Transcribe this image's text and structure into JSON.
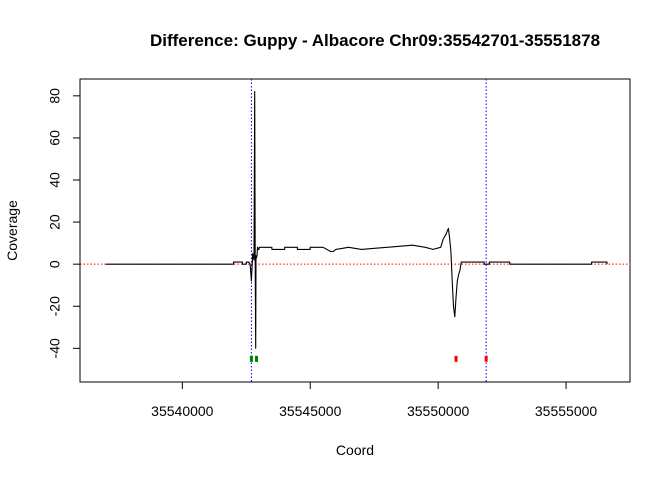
{
  "chart_data": {
    "type": "line",
    "title": "Difference: Guppy - Albacore  Chr09:35542701-35551878",
    "xlabel": "Coord",
    "ylabel": "Coverage",
    "xlim": [
      35536000,
      35557500
    ],
    "ylim": [
      -56,
      88
    ],
    "x_ticks": [
      35540000,
      35545000,
      35550000,
      35555000
    ],
    "x_tick_labels": [
      "35540000",
      "35545000",
      "35550000",
      "35555000"
    ],
    "y_ticks": [
      -40,
      -20,
      0,
      20,
      40,
      60,
      80
    ],
    "y_tick_labels": [
      "-40",
      "-20",
      "0",
      "20",
      "40",
      "60",
      "80"
    ],
    "grid": false,
    "reference_lines": [
      {
        "orientation": "vertical",
        "value": 35542701,
        "color": "#0000ff",
        "style": "dotted"
      },
      {
        "orientation": "vertical",
        "value": 35551878,
        "color": "#0000ff",
        "style": "dotted"
      },
      {
        "orientation": "horizontal",
        "value": 0,
        "color": "#ff0000",
        "style": "dotted"
      }
    ],
    "markers": [
      {
        "x": 35542700,
        "y": -45,
        "color": "#008000"
      },
      {
        "x": 35542900,
        "y": -45,
        "color": "#008000"
      },
      {
        "x": 35550700,
        "y": -45,
        "color": "#ff0000"
      },
      {
        "x": 35551878,
        "y": -45,
        "color": "#ff0000"
      }
    ],
    "series": [
      {
        "color": "#000000",
        "x": [
          35537000,
          35542000,
          35542000,
          35542350,
          35542350,
          35542500,
          35542500,
          35542600,
          35542650,
          35542700,
          35542750,
          35542800,
          35542830,
          35542850,
          35542870,
          35542880,
          35542900,
          35542920,
          35542940,
          35542960,
          35543000,
          35543000,
          35543500,
          35543500,
          35544000,
          35544000,
          35544500,
          35544500,
          35545000,
          35545000,
          35545500,
          35545800,
          35545900,
          35546000,
          35546000,
          35546500,
          35546500,
          35547000,
          35547000,
          35548000,
          35548000,
          35549000,
          35549000,
          35549500,
          35549500,
          35549800,
          35549800,
          35550100,
          35550150,
          35550200,
          35550300,
          35550400,
          35550450,
          35550500,
          35550550,
          35550600,
          35550650,
          35550700,
          35550750,
          35550800,
          35550850,
          35550900,
          35551000,
          35551200,
          35551800,
          35551800,
          35552000,
          35552000,
          35552800,
          35552800,
          35556000,
          35556000,
          35556600,
          35556600
        ],
        "y": [
          0,
          0,
          1,
          1,
          0,
          0,
          1,
          1,
          0,
          -8,
          5,
          2,
          82,
          2,
          -40,
          4,
          3,
          4,
          8,
          7,
          7,
          8,
          8,
          7,
          7,
          8,
          8,
          7,
          7,
          8,
          8,
          6,
          6,
          7,
          7,
          8,
          8,
          7,
          7,
          8,
          8,
          9,
          9,
          8,
          8,
          7,
          7,
          8,
          10,
          12,
          14,
          17,
          12,
          6,
          -8,
          -20,
          -25,
          -16,
          -8,
          -5,
          -3,
          1,
          1,
          1,
          1,
          0,
          0,
          1,
          1,
          0,
          0,
          1,
          1,
          0
        ]
      }
    ]
  }
}
